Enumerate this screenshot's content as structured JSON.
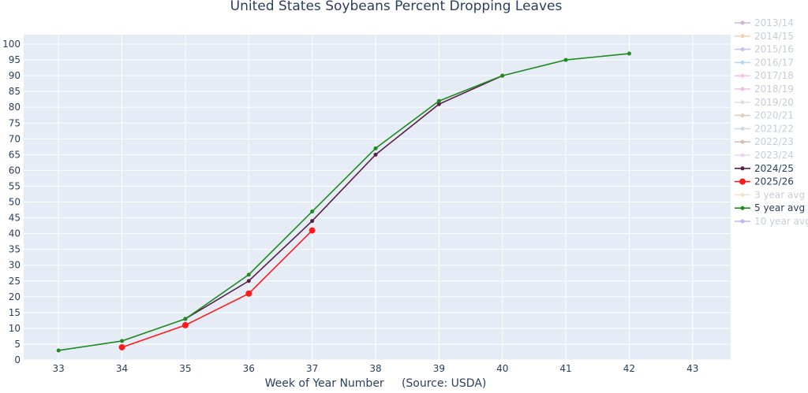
{
  "chart_data": {
    "type": "line",
    "title": "United States Soybeans Percent Dropping Leaves",
    "xlabel": "Week of Year Number     (Source: USDA)",
    "ylabel": "",
    "xlim": [
      32.45,
      43.6
    ],
    "ylim": [
      0,
      103
    ],
    "x_ticks": [
      "33",
      "34",
      "35",
      "36",
      "37",
      "38",
      "39",
      "40",
      "41",
      "42",
      "43"
    ],
    "y_ticks": [
      "0",
      "5",
      "10",
      "15",
      "20",
      "25",
      "30",
      "35",
      "40",
      "45",
      "50",
      "55",
      "60",
      "65",
      "70",
      "75",
      "80",
      "85",
      "90",
      "95",
      "100"
    ],
    "grid": true,
    "legend_position": "right",
    "series": [
      {
        "name": "2013/14",
        "color": "#a07ab0",
        "visible": false,
        "x": [],
        "y": []
      },
      {
        "name": "2014/15",
        "color": "#f4a582",
        "visible": false,
        "x": [],
        "y": []
      },
      {
        "name": "2015/16",
        "color": "#9a8fe8",
        "visible": false,
        "x": [],
        "y": []
      },
      {
        "name": "2016/17",
        "color": "#7fb8d8",
        "visible": false,
        "x": [],
        "y": []
      },
      {
        "name": "2017/18",
        "color": "#f78fd6",
        "visible": false,
        "x": [],
        "y": []
      },
      {
        "name": "2018/19",
        "color": "#e38fc5",
        "visible": false,
        "x": [],
        "y": []
      },
      {
        "name": "2019/20",
        "color": "#c8c8c8",
        "visible": false,
        "x": [],
        "y": []
      },
      {
        "name": "2020/21",
        "color": "#c2a58a",
        "visible": false,
        "x": [],
        "y": []
      },
      {
        "name": "2021/22",
        "color": "#b4bdc8",
        "visible": false,
        "x": [],
        "y": []
      },
      {
        "name": "2022/23",
        "color": "#b08a7a",
        "visible": false,
        "x": [],
        "y": []
      },
      {
        "name": "2023/24",
        "color": "#d6b0e8",
        "visible": false,
        "x": [],
        "y": []
      },
      {
        "name": "2024/25",
        "color": "#5b1f4a",
        "visible": true,
        "marker_size": 2.5,
        "x": [
          35,
          36,
          37,
          38,
          39,
          40
        ],
        "y": [
          13,
          25,
          44,
          65,
          81,
          90
        ]
      },
      {
        "name": "2025/26",
        "color": "#ff1a1a",
        "visible": true,
        "marker_size": 4,
        "x": [
          34,
          35,
          36,
          37
        ],
        "y": [
          4,
          11,
          21,
          41
        ]
      },
      {
        "name": "3 year avg",
        "color": "#f2c99a",
        "visible": false,
        "x": [],
        "y": []
      },
      {
        "name": "5 year avg",
        "color": "#1f8a1f",
        "visible": true,
        "marker_size": 2.5,
        "x": [
          33,
          34,
          35,
          36,
          37,
          38,
          39,
          40,
          41,
          42
        ],
        "y": [
          3,
          6,
          13,
          27,
          47,
          67,
          82,
          90,
          95,
          97
        ]
      },
      {
        "name": "10 year avg",
        "color": "#8a7fe8",
        "visible": false,
        "x": [],
        "y": []
      }
    ]
  },
  "colors": {
    "plot_bg": "#e5ecf6",
    "grid": "#ffffff",
    "text": "#2a3f5f",
    "legend_hidden_text": "#9aa3b5"
  }
}
